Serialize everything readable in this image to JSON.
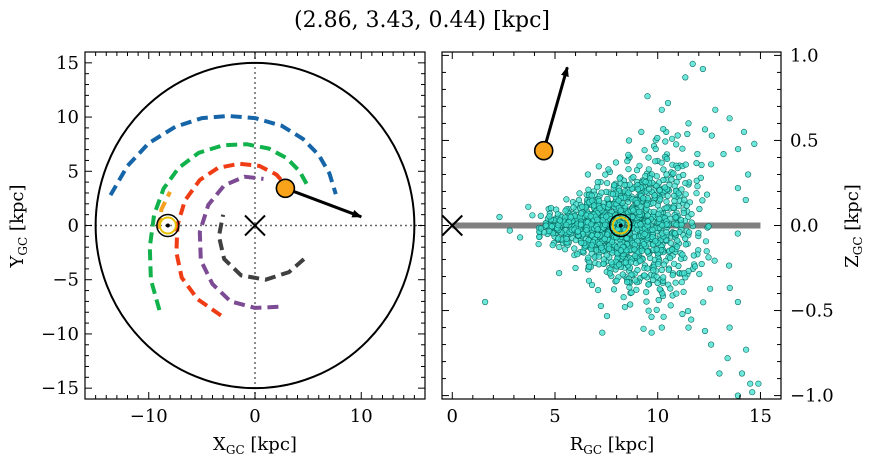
{
  "figure": {
    "title": "(2.86, 3.43, 0.44) [kpc]"
  },
  "colors": {
    "arm_blue": "#1565a8",
    "arm_green": "#11b14b",
    "arm_red": "#f03c14",
    "arm_purple": "#7d4a94",
    "arm_grey": "#404040",
    "arm_orange": "#f4a020",
    "star_fill": "#f9a31a",
    "scatter_fill": "#3fe0d0",
    "scatter_edge": "#0a6b60",
    "disk_line": "#808080"
  },
  "chart_data": [
    {
      "type": "line",
      "panel": "left",
      "xlabel": "X$_{GC}$ [kpc]",
      "ylabel": "Y$_{GC}$ [kpc]",
      "xlabel_parts": {
        "main": "X",
        "sub": "GC",
        "unit": " [kpc]"
      },
      "ylabel_parts": {
        "main": "Y",
        "sub": "GC",
        "unit": " [kpc]"
      },
      "xlim": [
        -16,
        16
      ],
      "ylim": [
        -16,
        16
      ],
      "xticks": [
        -10,
        0,
        10
      ],
      "yticks": [
        -15,
        -10,
        -5,
        0,
        5,
        10,
        15
      ],
      "xtick_labels": [
        "−10",
        "0",
        "10"
      ],
      "ytick_labels": [
        "−15",
        "−10",
        "−5",
        "0",
        "5",
        "10",
        "15"
      ],
      "boundary_circle_radius": 15,
      "reference_lines": {
        "x": 0,
        "y": 0
      },
      "galactic_center": [
        0,
        0
      ],
      "sun_position": [
        -8.2,
        0
      ],
      "source_position": [
        2.86,
        3.43
      ],
      "velocity_arrow_end": [
        10,
        0.8
      ],
      "series": [
        {
          "color_key": "arm_blue",
          "points": [
            [
              -13.6,
              2.8
            ],
            [
              -12,
              5.5
            ],
            [
              -10,
              7.6
            ],
            [
              -7.5,
              9.1
            ],
            [
              -5,
              9.9
            ],
            [
              -2.5,
              10.1
            ],
            [
              0,
              9.9
            ],
            [
              2.5,
              9.2
            ],
            [
              4.5,
              8
            ],
            [
              6,
              6.5
            ],
            [
              7,
              4.8
            ],
            [
              7.6,
              2.9
            ]
          ]
        },
        {
          "color_key": "arm_green",
          "points": [
            [
              -9,
              -7.8
            ],
            [
              -9.8,
              -5
            ],
            [
              -9.9,
              -2
            ],
            [
              -9.5,
              1
            ],
            [
              -8.6,
              3.4
            ],
            [
              -7.2,
              5.3
            ],
            [
              -5.3,
              6.7
            ],
            [
              -3,
              7.4
            ],
            [
              -0.8,
              7.5
            ],
            [
              1.3,
              7.1
            ],
            [
              3,
              6.2
            ],
            [
              4.2,
              5
            ],
            [
              5,
              3.6
            ]
          ]
        },
        {
          "color_key": "arm_red",
          "points": [
            [
              -3.2,
              -8.3
            ],
            [
              -5.4,
              -6.8
            ],
            [
              -6.9,
              -4.8
            ],
            [
              -7.4,
              -2.5
            ],
            [
              -7.3,
              0
            ],
            [
              -6.6,
              2.3
            ],
            [
              -5.2,
              4.2
            ],
            [
              -3.5,
              5.3
            ],
            [
              -1.5,
              5.7
            ],
            [
              0.4,
              5.5
            ],
            [
              2,
              4.7
            ],
            [
              3.2,
              3.4
            ]
          ]
        },
        {
          "color_key": "arm_purple",
          "points": [
            [
              2.2,
              -7.5
            ],
            [
              0,
              -7.6
            ],
            [
              -2.3,
              -7
            ],
            [
              -4,
              -5.4
            ],
            [
              -5.1,
              -3.2
            ],
            [
              -5.2,
              -0.6
            ],
            [
              -4.4,
              1.9
            ],
            [
              -2.9,
              3.7
            ],
            [
              -1,
              4.5
            ],
            [
              0.8,
              4.3
            ]
          ]
        },
        {
          "color_key": "arm_grey",
          "points": [
            [
              4.6,
              -3.1
            ],
            [
              3.2,
              -4.3
            ],
            [
              1,
              -5
            ],
            [
              -1.3,
              -4.6
            ],
            [
              -2.9,
              -3.1
            ],
            [
              -3.4,
              -1
            ],
            [
              -3,
              1
            ]
          ]
        },
        {
          "color_key": "arm_orange",
          "points": [
            [
              -9.1,
              -0.3
            ],
            [
              -8.8,
              1.5
            ],
            [
              -8,
              3.1
            ]
          ]
        }
      ]
    },
    {
      "type": "scatter",
      "panel": "right",
      "xlabel": "R$_{GC}$ [kpc]",
      "ylabel": "Z$_{GC}$ [kpc]",
      "xlabel_parts": {
        "main": "R",
        "sub": "GC",
        "unit": " [kpc]"
      },
      "ylabel_parts": {
        "main": "Z",
        "sub": "GC",
        "unit": " [kpc]"
      },
      "xlim": [
        -0.5,
        16
      ],
      "ylim": [
        -1.02,
        1.02
      ],
      "xticks": [
        0,
        5,
        10,
        15
      ],
      "yticks": [
        -1.0,
        -0.5,
        0.0,
        0.5,
        1.0
      ],
      "xtick_labels": [
        "0",
        "5",
        "10",
        "15"
      ],
      "ytick_labels": [
        "−1.0",
        "−0.5",
        "0.0",
        "0.5",
        "1.0"
      ],
      "y_axis_side": "right",
      "galactic_center": [
        0,
        0
      ],
      "sun_position": [
        8.2,
        0
      ],
      "source_position": [
        4.45,
        0.44
      ],
      "velocity_arrow_end": [
        5.6,
        0.93
      ],
      "disk_line": {
        "x": [
          0,
          15
        ],
        "y": [
          0,
          0
        ]
      },
      "outlier_points": [
        [
          1.6,
          -0.45
        ],
        [
          5.2,
          -0.28
        ],
        [
          6,
          -0.25
        ],
        [
          7.1,
          -0.38
        ],
        [
          7.3,
          -0.63
        ],
        [
          9.7,
          -0.63
        ],
        [
          10.2,
          -0.6
        ],
        [
          11.2,
          -0.52
        ],
        [
          11.5,
          -0.6
        ],
        [
          12.3,
          -0.62
        ],
        [
          12.6,
          -0.7
        ],
        [
          13,
          -0.87
        ],
        [
          13.4,
          -0.78
        ],
        [
          13.5,
          -0.6
        ],
        [
          13.9,
          -0.45
        ],
        [
          14.1,
          -0.87
        ],
        [
          14.3,
          -0.73
        ],
        [
          14.5,
          -0.93
        ],
        [
          14.6,
          -0.98
        ],
        [
          14.9,
          -0.93
        ],
        [
          13.9,
          -1.0
        ],
        [
          11.5,
          0.6
        ],
        [
          11.7,
          0.95
        ],
        [
          12.2,
          0.92
        ],
        [
          9.5,
          0.76
        ],
        [
          10.2,
          0.68
        ],
        [
          10.5,
          0.72
        ],
        [
          12.8,
          0.68
        ],
        [
          13.5,
          0.63
        ],
        [
          14.2,
          0.55
        ],
        [
          14.7,
          0.48
        ],
        [
          14.4,
          0.3
        ],
        [
          13.9,
          0.22
        ],
        [
          9.2,
          0.55
        ],
        [
          8.6,
          0.5
        ],
        [
          9.9,
          0.45
        ],
        [
          10.7,
          0.51
        ],
        [
          2.3,
          0.05
        ],
        [
          2.8,
          -0.03
        ],
        [
          3.3,
          -0.07
        ],
        [
          3.9,
          0.06
        ],
        [
          4.2,
          -0.11
        ],
        [
          3.7,
          0.11
        ],
        [
          12.6,
          0.36
        ],
        [
          13.2,
          0.42
        ],
        [
          12.1,
          0.28
        ],
        [
          6.6,
          0.3
        ],
        [
          7.6,
          0.33
        ],
        [
          6.8,
          -0.35
        ],
        [
          8.4,
          -0.48
        ]
      ],
      "cloud": {
        "count": 1400,
        "seed": 12345,
        "center_x": 8.2,
        "x_sigma": 1.9,
        "x_min": 4.2,
        "x_max": 14.9,
        "z_sigma_base": 0.035,
        "z_sigma_slope": 0.032
      }
    }
  ]
}
